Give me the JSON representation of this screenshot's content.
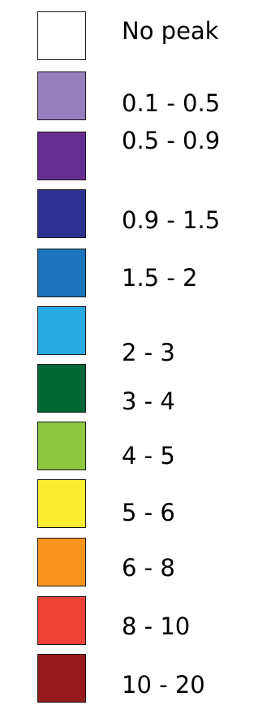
{
  "legend": {
    "items": [
      {
        "label": "No peak",
        "color": "#ffffff"
      },
      {
        "label": "0.1 - 0.5",
        "color": "#9580bd"
      },
      {
        "label": "0.5 - 0.9",
        "color": "#662d91"
      },
      {
        "label": "0.9 - 1.5",
        "color": "#2e3192"
      },
      {
        "label": "1.5 - 2",
        "color": "#1c75bc"
      },
      {
        "label": "2 - 3",
        "color": "#27aae1"
      },
      {
        "label": "3 - 4",
        "color": "#006837"
      },
      {
        "label": "4 - 5",
        "color": "#8dc63f"
      },
      {
        "label": "5 - 6",
        "color": "#f9ed32"
      },
      {
        "label": "6 - 8",
        "color": "#f7941d"
      },
      {
        "label": "8 - 10",
        "color": "#ef4136"
      },
      {
        "label": "10 - 20",
        "color": "#961b1e"
      }
    ]
  }
}
